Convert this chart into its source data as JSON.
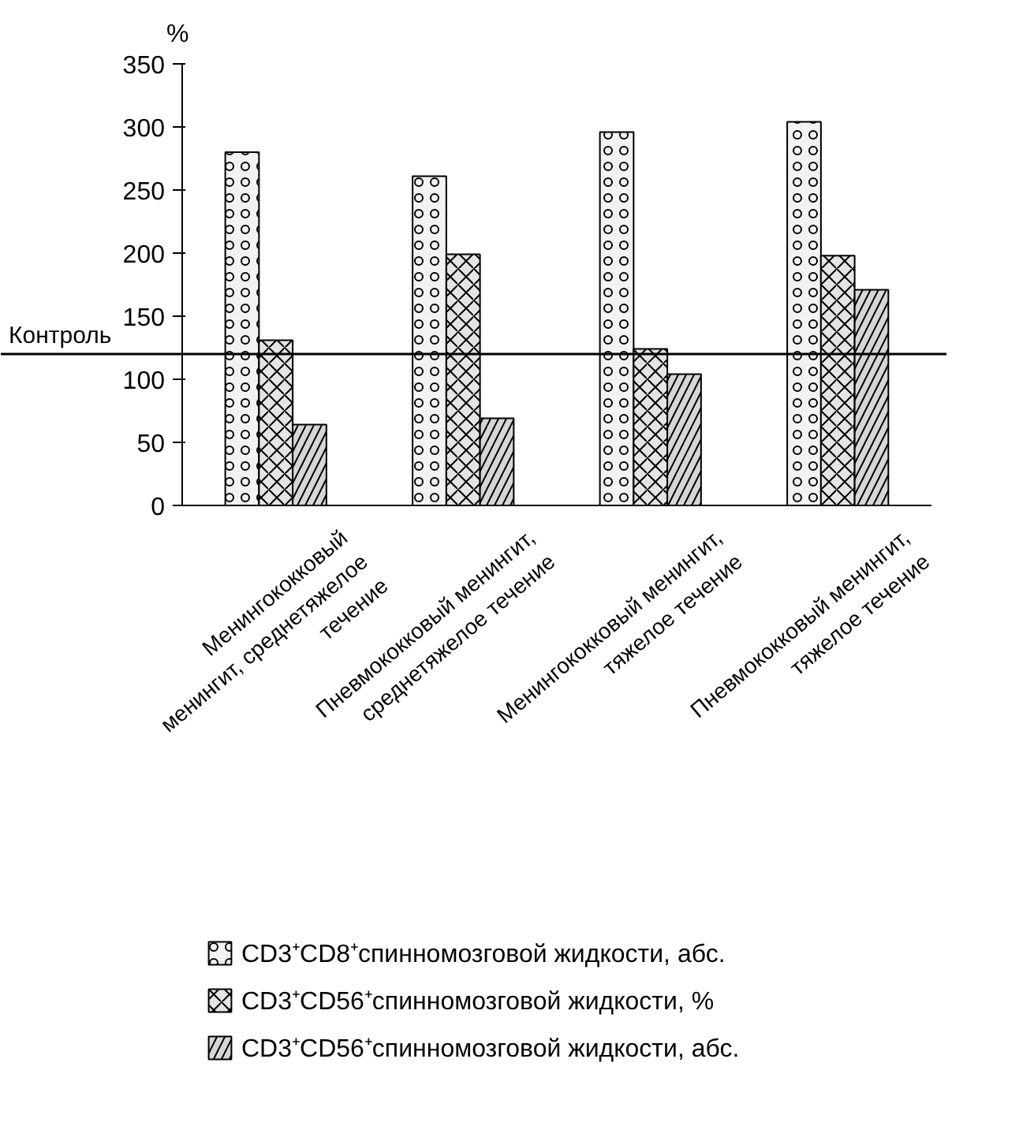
{
  "chart_data": {
    "type": "bar",
    "ylabel": "%",
    "categories": [
      "Менингококковый\nменингит, среднетяжелое\nтечение",
      "Пневмококковый менингит,\nсреднетяжелое течение",
      "Менингококковый менингит,\nтяжелое течение",
      "Пневмококковый менингит,\nтяжелое течение"
    ],
    "series": [
      {
        "name": "CD3⁺CD8⁺спинномозговой жидкости, абс.",
        "color": "#f2f2f2",
        "values": [
          280,
          261,
          296,
          304
        ]
      },
      {
        "name": "CD3⁺CD56⁺спинномозговой жидкости, %",
        "color": "#e4e4e4",
        "values": [
          131,
          199,
          124,
          198
        ]
      },
      {
        "name": "CD3⁺CD56⁺спинномозговой жидкости, абс.",
        "color": "#d6d6d6",
        "values": [
          64,
          69,
          104,
          171
        ]
      }
    ],
    "ylim": [
      0,
      350
    ],
    "yticks": [
      0,
      50,
      100,
      150,
      200,
      250,
      300,
      350
    ],
    "ref_lines": [
      {
        "axis": "y",
        "value": 120,
        "label": "Контроль",
        "color": "#000000"
      }
    ],
    "grid": false,
    "legend": "bottom"
  }
}
